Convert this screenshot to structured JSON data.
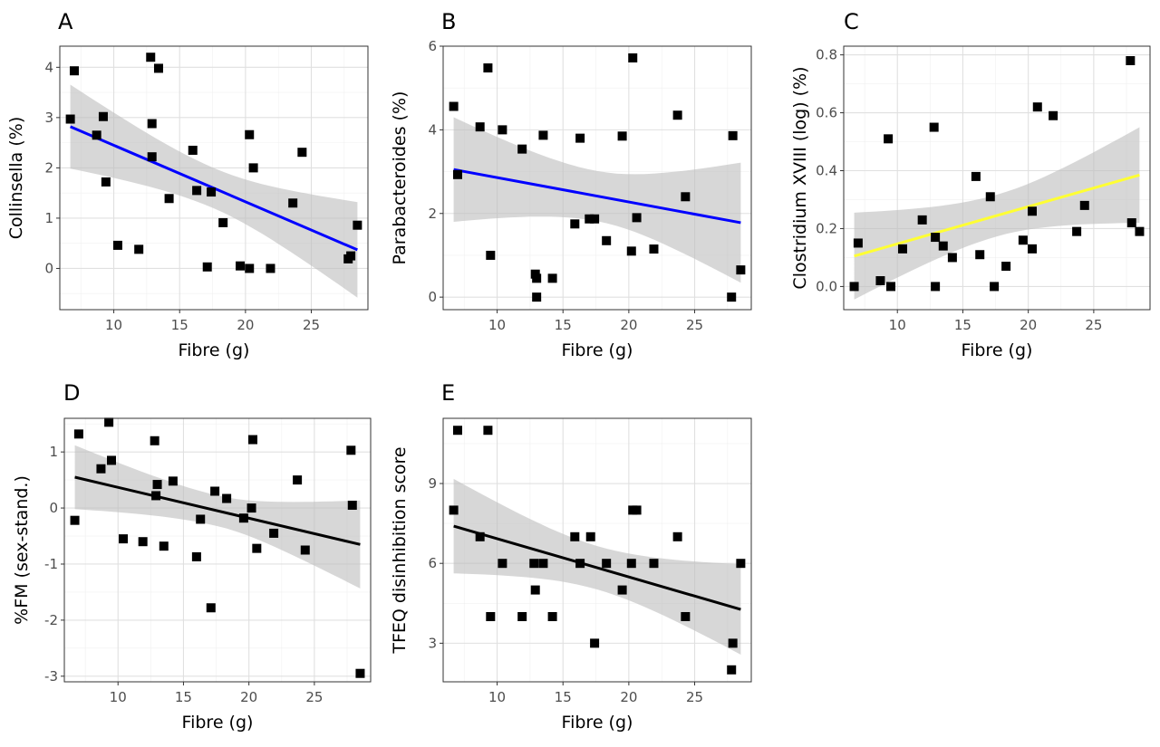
{
  "chart_data": [
    {
      "panel": "A",
      "type": "scatter",
      "xlabel": "Fibre (g)",
      "ylabel": "Collinsella (%)",
      "xlim": [
        5.9,
        29.3
      ],
      "ylim": [
        -0.82,
        4.42
      ],
      "xticks": [
        10,
        15,
        20,
        25
      ],
      "yticks": [
        0,
        1,
        2,
        3,
        4
      ],
      "ytick_labels": [
        "0",
        "1",
        "2",
        "3",
        "4"
      ],
      "grid": true,
      "fit_color": "#0000ff",
      "fit": {
        "x": [
          6.7,
          28.5
        ],
        "y": [
          2.82,
          0.37
        ]
      },
      "ci_band": {
        "x": [
          6.7,
          28.5
        ],
        "upper": [
          3.65,
          1.35
        ],
        "lower": [
          1.98,
          -0.55
        ]
      },
      "points": [
        [
          6.7,
          2.97
        ],
        [
          7.0,
          3.93
        ],
        [
          8.7,
          2.65
        ],
        [
          9.2,
          3.02
        ],
        [
          9.4,
          1.72
        ],
        [
          10.3,
          0.46
        ],
        [
          11.9,
          0.38
        ],
        [
          12.8,
          4.2
        ],
        [
          12.9,
          2.88
        ],
        [
          12.9,
          2.22
        ],
        [
          13.4,
          3.98
        ],
        [
          14.2,
          1.39
        ],
        [
          16.0,
          2.35
        ],
        [
          16.3,
          1.55
        ],
        [
          17.1,
          0.03
        ],
        [
          17.4,
          1.52
        ],
        [
          18.3,
          0.91
        ],
        [
          19.6,
          0.05
        ],
        [
          20.3,
          2.66
        ],
        [
          20.3,
          0.0
        ],
        [
          20.6,
          2.0
        ],
        [
          21.9,
          0.0
        ],
        [
          23.6,
          1.3
        ],
        [
          24.3,
          2.31
        ],
        [
          27.8,
          0.19
        ],
        [
          28.0,
          0.25
        ],
        [
          28.5,
          0.86
        ]
      ]
    },
    {
      "panel": "B",
      "type": "scatter",
      "xlabel": "Fibre (g)",
      "ylabel": "Parabacteroides (%)",
      "xlim": [
        5.9,
        29.3
      ],
      "ylim": [
        -0.3,
        6.0
      ],
      "xticks": [
        10,
        15,
        20,
        25
      ],
      "yticks": [
        0,
        2,
        4,
        6
      ],
      "ytick_labels": [
        "0",
        "2",
        "4",
        "6"
      ],
      "grid": true,
      "fit_color": "#0000ff",
      "fit": {
        "x": [
          6.7,
          28.5
        ],
        "y": [
          3.05,
          1.78
        ]
      },
      "ci_band": {
        "x": [
          6.7,
          28.5
        ],
        "upper": [
          4.3,
          3.22
        ],
        "lower": [
          1.8,
          0.35
        ]
      },
      "points": [
        [
          6.7,
          4.56
        ],
        [
          7.0,
          2.93
        ],
        [
          8.7,
          4.07
        ],
        [
          9.3,
          5.48
        ],
        [
          9.5,
          1.0
        ],
        [
          10.4,
          4.0
        ],
        [
          11.9,
          3.54
        ],
        [
          12.9,
          0.55
        ],
        [
          13.0,
          0.45
        ],
        [
          13.0,
          0.0
        ],
        [
          13.5,
          3.87
        ],
        [
          14.2,
          0.45
        ],
        [
          15.9,
          1.75
        ],
        [
          16.3,
          3.8
        ],
        [
          17.0,
          1.87
        ],
        [
          17.4,
          1.87
        ],
        [
          18.3,
          1.35
        ],
        [
          19.5,
          3.85
        ],
        [
          20.2,
          1.1
        ],
        [
          20.3,
          5.72
        ],
        [
          20.6,
          1.9
        ],
        [
          21.9,
          1.15
        ],
        [
          23.7,
          4.35
        ],
        [
          24.3,
          2.4
        ],
        [
          27.8,
          0.0
        ],
        [
          27.9,
          3.86
        ],
        [
          28.5,
          0.65
        ]
      ]
    },
    {
      "panel": "C",
      "type": "scatter",
      "xlabel": "Fibre (g)",
      "ylabel": "Clostridium XVIII (log) (%)",
      "xlim": [
        5.9,
        29.3
      ],
      "ylim": [
        -0.08,
        0.83
      ],
      "xticks": [
        10,
        15,
        20,
        25
      ],
      "yticks": [
        0.0,
        0.2,
        0.4,
        0.6,
        0.8
      ],
      "ytick_labels": [
        "0.0",
        "0.2",
        "0.4",
        "0.6",
        "0.8"
      ],
      "grid": true,
      "fit_color": "#ffff33",
      "fit": {
        "x": [
          6.7,
          28.5
        ],
        "y": [
          0.105,
          0.385
        ]
      },
      "ci_band": {
        "x": [
          6.7,
          28.5
        ],
        "upper": [
          0.255,
          0.55
        ],
        "lower": [
          -0.045,
          0.22
        ]
      },
      "points": [
        [
          6.7,
          0.0
        ],
        [
          7.0,
          0.15
        ],
        [
          8.7,
          0.02
        ],
        [
          9.3,
          0.51
        ],
        [
          9.5,
          0.0
        ],
        [
          10.4,
          0.13
        ],
        [
          11.9,
          0.23
        ],
        [
          12.8,
          0.55
        ],
        [
          12.9,
          0.0
        ],
        [
          12.9,
          0.17
        ],
        [
          13.5,
          0.14
        ],
        [
          14.2,
          0.1
        ],
        [
          16.0,
          0.38
        ],
        [
          16.3,
          0.11
        ],
        [
          17.1,
          0.31
        ],
        [
          17.4,
          0.0
        ],
        [
          18.3,
          0.07
        ],
        [
          19.6,
          0.16
        ],
        [
          20.3,
          0.26
        ],
        [
          20.3,
          0.13
        ],
        [
          20.7,
          0.62
        ],
        [
          21.9,
          0.59
        ],
        [
          23.7,
          0.19
        ],
        [
          24.3,
          0.28
        ],
        [
          27.8,
          0.78
        ],
        [
          27.9,
          0.22
        ],
        [
          28.5,
          0.19
        ]
      ]
    },
    {
      "panel": "D",
      "type": "scatter",
      "xlabel": "Fibre (g)",
      "ylabel": "%FM (sex-stand.)",
      "xlim": [
        5.9,
        29.3
      ],
      "ylim": [
        -3.1,
        1.6
      ],
      "xticks": [
        10,
        15,
        20,
        25
      ],
      "yticks": [
        1,
        0,
        -1,
        -2,
        -3
      ],
      "ytick_labels": [
        "1",
        "0",
        "-1",
        "-2",
        "-3"
      ],
      "grid": true,
      "fit_color": "#000000",
      "fit": {
        "x": [
          6.7,
          28.5
        ],
        "y": [
          0.55,
          -0.65
        ]
      },
      "ci_band": {
        "x": [
          6.7,
          28.5
        ],
        "upper": [
          1.12,
          0.12
        ],
        "lower": [
          -0.02,
          -1.45
        ]
      },
      "points": [
        [
          6.7,
          -0.22
        ],
        [
          7.0,
          1.32
        ],
        [
          8.7,
          0.7
        ],
        [
          9.3,
          1.53
        ],
        [
          9.5,
          0.85
        ],
        [
          10.4,
          -0.55
        ],
        [
          11.9,
          -0.6
        ],
        [
          12.8,
          1.2
        ],
        [
          12.9,
          0.22
        ],
        [
          13.0,
          0.42
        ],
        [
          13.5,
          -0.68
        ],
        [
          14.2,
          0.48
        ],
        [
          16.0,
          -0.87
        ],
        [
          16.3,
          -0.2
        ],
        [
          17.1,
          -1.78
        ],
        [
          17.4,
          0.3
        ],
        [
          18.3,
          0.17
        ],
        [
          19.6,
          -0.18
        ],
        [
          20.2,
          0.0
        ],
        [
          20.3,
          1.22
        ],
        [
          20.6,
          -0.72
        ],
        [
          21.9,
          -0.45
        ],
        [
          23.7,
          0.5
        ],
        [
          24.3,
          -0.75
        ],
        [
          27.8,
          1.03
        ],
        [
          27.9,
          0.05
        ],
        [
          28.5,
          -2.95
        ]
      ]
    },
    {
      "panel": "E",
      "type": "scatter",
      "xlabel": "Fibre (g)",
      "ylabel": "TFEQ disinhibition score",
      "xlim": [
        5.9,
        29.3
      ],
      "ylim": [
        1.55,
        11.45
      ],
      "xticks": [
        10,
        15,
        20,
        25
      ],
      "yticks": [
        3,
        6,
        9
      ],
      "ytick_labels": [
        "3",
        "6",
        "9"
      ],
      "grid": true,
      "fit_color": "#000000",
      "fit": {
        "x": [
          6.7,
          28.5
        ],
        "y": [
          7.4,
          4.27
        ]
      },
      "ci_band": {
        "x": [
          6.7,
          28.5
        ],
        "upper": [
          9.2,
          5.95
        ],
        "lower": [
          5.65,
          2.55
        ]
      },
      "points": [
        [
          6.7,
          8
        ],
        [
          7.0,
          11
        ],
        [
          8.7,
          7
        ],
        [
          9.3,
          11
        ],
        [
          9.5,
          4
        ],
        [
          10.4,
          6
        ],
        [
          11.9,
          4
        ],
        [
          12.8,
          6
        ],
        [
          12.9,
          5
        ],
        [
          13.5,
          6
        ],
        [
          14.2,
          4
        ],
        [
          15.9,
          7
        ],
        [
          16.3,
          6
        ],
        [
          17.1,
          7
        ],
        [
          17.4,
          3
        ],
        [
          18.3,
          6
        ],
        [
          19.5,
          5
        ],
        [
          20.2,
          6
        ],
        [
          20.3,
          8
        ],
        [
          20.6,
          8
        ],
        [
          21.9,
          6
        ],
        [
          23.7,
          7
        ],
        [
          24.3,
          4
        ],
        [
          27.8,
          2
        ],
        [
          27.9,
          3
        ],
        [
          28.5,
          6
        ]
      ]
    }
  ]
}
